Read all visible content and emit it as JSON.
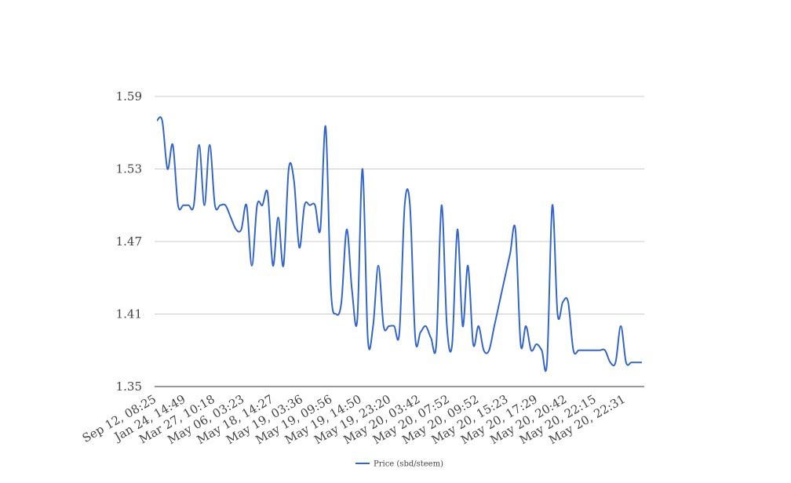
{
  "chart_data": {
    "type": "line",
    "title": "",
    "xlabel": "",
    "ylabel": "",
    "ylim": [
      1.35,
      1.59
    ],
    "y_ticks": [
      1.35,
      1.41,
      1.47,
      1.53,
      1.59
    ],
    "y_tick_labels": [
      "1.35",
      "1.41",
      "1.47",
      "1.53",
      "1.59"
    ],
    "grid": "horizontal",
    "legend_position": "bottom",
    "x_tick_labels": [
      "Sep 12, 08:25",
      "Jan 24, 14:49",
      "Mar 27, 10:18",
      "May 06, 03:23",
      "May 18, 14:27",
      "May 19, 03:36",
      "May 19, 09:56",
      "May 19, 14:50",
      "May 19, 23:20",
      "May 20, 03:42",
      "May 20, 07:52",
      "May 20, 09:52",
      "May 20, 15:23",
      "May 20, 17:29",
      "May 20, 20:42",
      "May 20, 22:15",
      "May 20, 22:31"
    ],
    "series": [
      {
        "name": "Price (sbd/steem)",
        "color": "#3366cc",
        "values": [
          1.57,
          1.57,
          1.53,
          1.55,
          1.5,
          1.5,
          1.5,
          1.5,
          1.55,
          1.5,
          1.55,
          1.5,
          1.5,
          1.5,
          1.49,
          1.48,
          1.48,
          1.5,
          1.45,
          1.5,
          1.5,
          1.51,
          1.45,
          1.49,
          1.45,
          1.53,
          1.52,
          1.465,
          1.5,
          1.5,
          1.5,
          1.48,
          1.565,
          1.43,
          1.41,
          1.42,
          1.48,
          1.43,
          1.405,
          1.53,
          1.39,
          1.4,
          1.45,
          1.4,
          1.4,
          1.4,
          1.395,
          1.5,
          1.5,
          1.39,
          1.395,
          1.4,
          1.39,
          1.385,
          1.5,
          1.4,
          1.385,
          1.48,
          1.4,
          1.45,
          1.385,
          1.4,
          1.38,
          1.38,
          1.4,
          1.42,
          1.44,
          1.46,
          1.48,
          1.385,
          1.4,
          1.38,
          1.385,
          1.38,
          1.37,
          1.5,
          1.41,
          1.42,
          1.42,
          1.38,
          1.38,
          1.38,
          1.38,
          1.38,
          1.38,
          1.38,
          1.37,
          1.37,
          1.4,
          1.37,
          1.37,
          1.37,
          1.37
        ]
      }
    ]
  }
}
